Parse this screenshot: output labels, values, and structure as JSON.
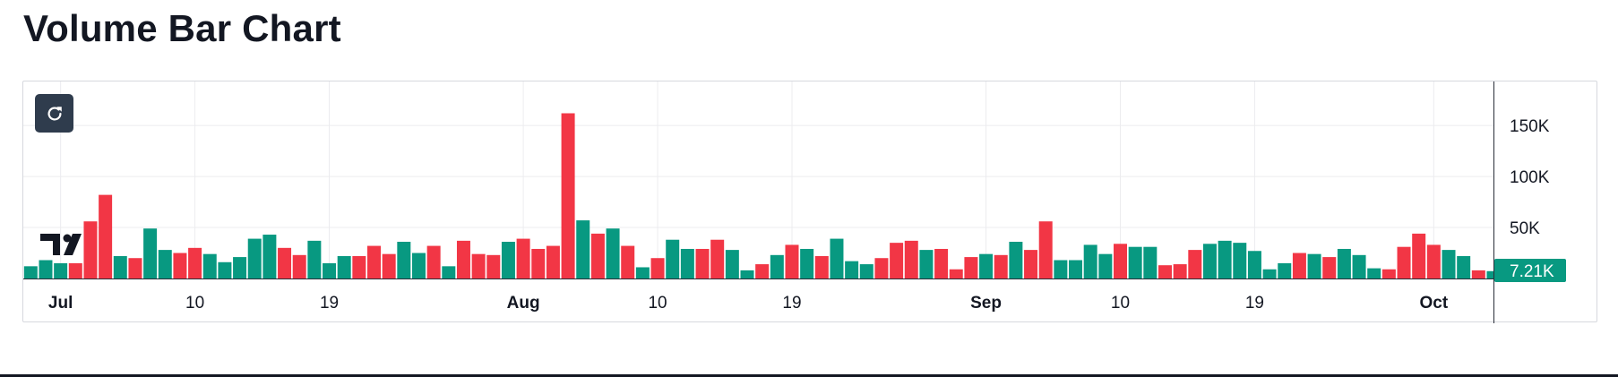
{
  "page": {
    "title": "Volume Bar Chart"
  },
  "controls": {
    "reset_icon": "refresh-icon"
  },
  "branding": {
    "logo_text": "TV"
  },
  "colors": {
    "up": "#089981",
    "down": "#f23645",
    "grid": "#ececef",
    "axis_text": "#131722"
  },
  "chart_data": {
    "type": "bar",
    "title": "",
    "xlabel": "",
    "ylabel": "",
    "ylim": [
      0,
      180000
    ],
    "y_ticks": [
      {
        "value": 50000,
        "label": "50K"
      },
      {
        "value": 100000,
        "label": "100K"
      },
      {
        "value": 150000,
        "label": "150K"
      }
    ],
    "x_ticks": [
      {
        "index": 2,
        "label": "Jul",
        "bold": true
      },
      {
        "index": 11,
        "label": "10",
        "bold": false
      },
      {
        "index": 20,
        "label": "19",
        "bold": false
      },
      {
        "index": 33,
        "label": "Aug",
        "bold": true
      },
      {
        "index": 42,
        "label": "10",
        "bold": false
      },
      {
        "index": 51,
        "label": "19",
        "bold": false
      },
      {
        "index": 64,
        "label": "Sep",
        "bold": true
      },
      {
        "index": 73,
        "label": "10",
        "bold": false
      },
      {
        "index": 82,
        "label": "19",
        "bold": false
      },
      {
        "index": 94,
        "label": "Oct",
        "bold": true
      }
    ],
    "last_value_label": "7.21K",
    "grid": true,
    "series": [
      {
        "values": [
          12000,
          18000,
          15000,
          15000,
          56000,
          82000,
          22000,
          20000,
          49000,
          28000,
          25000,
          30000,
          24000,
          16000,
          21000,
          39000,
          43000,
          30000,
          23000,
          37000,
          15000,
          22000,
          22000,
          32000,
          24000,
          36000,
          25000,
          32000,
          12000,
          37000,
          24000,
          23000,
          36000,
          39000,
          29000,
          32000,
          162000,
          57000,
          44000,
          49000,
          32000,
          11000,
          20000,
          38000,
          29000,
          29000,
          38000,
          28000,
          8000,
          14000,
          23000,
          33000,
          29000,
          22000,
          39000,
          17000,
          14000,
          20000,
          35000,
          37000,
          28000,
          29000,
          9000,
          21000,
          24000,
          23000,
          36000,
          28000,
          56000,
          18000,
          18000,
          33000,
          24000,
          34000,
          31000,
          31000,
          13000,
          14000,
          28000,
          34000,
          37000,
          35000,
          27000,
          9000,
          15000,
          25000,
          24000,
          21000,
          29000,
          23000,
          10000,
          9000,
          31000,
          44000,
          33000,
          28000,
          22000,
          8000,
          7210
        ],
        "up": [
          1,
          1,
          1,
          0,
          0,
          0,
          1,
          0,
          1,
          1,
          0,
          0,
          1,
          1,
          1,
          1,
          1,
          0,
          0,
          1,
          1,
          1,
          0,
          0,
          0,
          1,
          1,
          0,
          1,
          0,
          0,
          0,
          1,
          0,
          0,
          0,
          0,
          1,
          0,
          1,
          0,
          1,
          0,
          1,
          1,
          0,
          0,
          1,
          1,
          0,
          1,
          0,
          1,
          0,
          1,
          1,
          1,
          0,
          0,
          0,
          1,
          0,
          0,
          0,
          1,
          0,
          1,
          0,
          0,
          1,
          1,
          1,
          1,
          0,
          1,
          1,
          0,
          0,
          0,
          1,
          1,
          1,
          1,
          1,
          1,
          0,
          1,
          0,
          1,
          1,
          1,
          0,
          0,
          0,
          0,
          1,
          1,
          0,
          1
        ]
      }
    ]
  }
}
